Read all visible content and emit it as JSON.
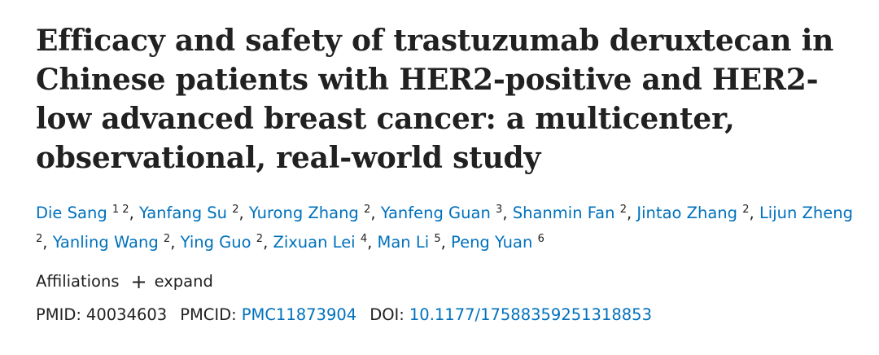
{
  "article": {
    "title": "Efficacy and safety of trastuzumab deruxtecan in Chinese patients with HER2-positive and HER2-low advanced breast cancer: a multicenter, observational, real-world study"
  },
  "authors": [
    {
      "name": "Die Sang",
      "aff": "1 2"
    },
    {
      "name": "Yanfang Su",
      "aff": "2"
    },
    {
      "name": "Yurong Zhang",
      "aff": "2"
    },
    {
      "name": "Yanfeng Guan",
      "aff": "3"
    },
    {
      "name": "Shanmin Fan",
      "aff": "2"
    },
    {
      "name": "Jintao Zhang",
      "aff": "2"
    },
    {
      "name": "Lijun Zheng",
      "aff": "2"
    },
    {
      "name": "Yanling Wang",
      "aff": "2"
    },
    {
      "name": "Ying Guo",
      "aff": "2"
    },
    {
      "name": "Zixuan Lei",
      "aff": "4"
    },
    {
      "name": "Man Li",
      "aff": "5"
    },
    {
      "name": "Peng Yuan",
      "aff": "6"
    }
  ],
  "author_separator": ",",
  "affiliations": {
    "label": "Affiliations",
    "expand_icon": "+",
    "expand_label": "expand"
  },
  "identifiers": {
    "pmid_label": "PMID:",
    "pmid": "40034603",
    "pmcid_label": "PMCID:",
    "pmcid": "PMC11873904",
    "doi_label": "DOI:",
    "doi": "10.1177/17588359251318853"
  },
  "colors": {
    "link": "#0071bc",
    "text": "#212121",
    "background": "#ffffff"
  }
}
